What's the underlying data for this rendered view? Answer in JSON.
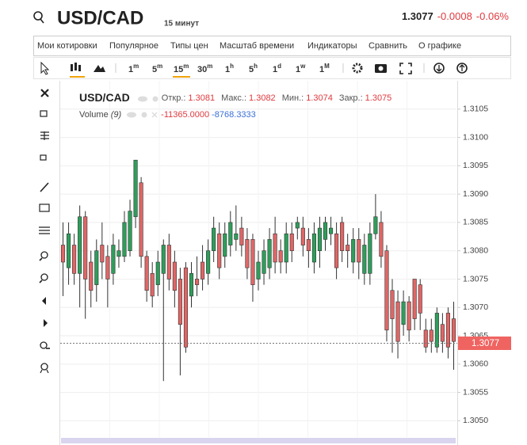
{
  "header": {
    "symbol": "USD/CAD",
    "interval": "15 минут",
    "price": "1.3077",
    "change": "-0.0008",
    "change_pct": "-0.06%"
  },
  "menu": [
    "Мои котировки",
    "Популярное",
    "Типы цен",
    "Масштаб времени",
    "Индикаторы",
    "Сравнить",
    "О графике"
  ],
  "timeframes": [
    {
      "num": "1",
      "unit": "m"
    },
    {
      "num": "5",
      "unit": "m"
    },
    {
      "num": "15",
      "unit": "m"
    },
    {
      "num": "30",
      "unit": "m"
    },
    {
      "num": "1",
      "unit": "h"
    },
    {
      "num": "5",
      "unit": "h"
    },
    {
      "num": "1",
      "unit": "d"
    },
    {
      "num": "1",
      "unit": "w"
    },
    {
      "num": "1",
      "unit": "M"
    }
  ],
  "legend": {
    "symbol": "USD/CAD",
    "open_label": "Откр.:",
    "open": "1.3081",
    "high_label": "Макс.:",
    "high": "1.3082",
    "low_label": "Мин.:",
    "low": "1.3074",
    "close_label": "Закр.:",
    "close": "1.3075",
    "volume_label": "Volume",
    "volume_param": "(9)",
    "volume_1": "-11365.0000",
    "volume_2": "-8768.3333"
  },
  "price_marker": "1.3077",
  "chart_data": {
    "type": "candlestick",
    "up_color": "#2e9e5b",
    "down_color": "#e06666",
    "grid": true,
    "open": [
      1.3081,
      1.3077,
      1.3081,
      1.3076,
      1.3086,
      1.3078,
      1.3074,
      1.3081,
      1.3079,
      1.3076,
      1.3079,
      1.3079,
      1.308,
      1.3086,
      1.3092,
      1.3079,
      1.3076,
      1.3074,
      1.3076,
      1.3081,
      1.3078,
      1.3075,
      1.3077,
      1.3072,
      1.3075,
      1.3078,
      1.3076,
      1.308,
      1.3083,
      1.3079,
      1.3081,
      1.3082,
      1.3084,
      1.3082,
      1.3082,
      1.3075,
      1.3076,
      1.3077,
      1.3083,
      1.308,
      1.3078,
      1.3083,
      1.3084,
      1.3084,
      1.3082,
      1.3078,
      1.308,
      1.3082,
      1.3083,
      1.3083,
      1.3085,
      1.3081,
      1.3078,
      1.3082,
      1.3076,
      1.3076,
      1.3083,
      1.3085,
      1.308,
      1.3073,
      1.3071,
      1.3067,
      1.3071,
      1.3075,
      1.3074,
      1.3066,
      1.3066,
      1.3063,
      1.3067,
      1.3069,
      1.3068
    ],
    "high": [
      1.3085,
      1.3085,
      1.3083,
      1.3088,
      1.3087,
      1.308,
      1.3082,
      1.3085,
      1.3081,
      1.3083,
      1.3082,
      1.3087,
      1.3089,
      1.3096,
      1.3093,
      1.308,
      1.3078,
      1.308,
      1.3082,
      1.3083,
      1.308,
      1.3077,
      1.3078,
      1.3078,
      1.3079,
      1.3081,
      1.3082,
      1.3086,
      1.3085,
      1.3085,
      1.3087,
      1.3088,
      1.3086,
      1.3084,
      1.3083,
      1.308,
      1.3082,
      1.3084,
      1.3086,
      1.3082,
      1.3085,
      1.3085,
      1.3086,
      1.3086,
      1.3084,
      1.3085,
      1.3086,
      1.3086,
      1.3086,
      1.3085,
      1.3086,
      1.3083,
      1.3084,
      1.3084,
      1.3083,
      1.3085,
      1.309,
      1.3087,
      1.3081,
      1.3075,
      1.3073,
      1.3073,
      1.3072,
      1.3075,
      1.3075,
      1.3068,
      1.3068,
      1.307,
      1.3069,
      1.307,
      1.3071
    ],
    "low": [
      1.3072,
      1.3074,
      1.3074,
      1.307,
      1.3068,
      1.307,
      1.3071,
      1.3075,
      1.307,
      1.3074,
      1.3077,
      1.3078,
      1.3079,
      1.3084,
      1.3077,
      1.3071,
      1.307,
      1.3072,
      1.3057,
      1.3073,
      1.307,
      1.3058,
      1.3062,
      1.307,
      1.3072,
      1.3073,
      1.3074,
      1.3078,
      1.3075,
      1.3077,
      1.3079,
      1.308,
      1.3079,
      1.3075,
      1.3071,
      1.3073,
      1.3074,
      1.3075,
      1.3076,
      1.3076,
      1.3076,
      1.3078,
      1.3082,
      1.3079,
      1.3077,
      1.3076,
      1.3077,
      1.308,
      1.3081,
      1.3075,
      1.3078,
      1.3077,
      1.3076,
      1.3075,
      1.3074,
      1.3074,
      1.3082,
      1.3077,
      1.3064,
      1.3062,
      1.3061,
      1.3065,
      1.3064,
      1.3066,
      1.3066,
      1.3062,
      1.3062,
      1.3062,
      1.3062,
      1.3061,
      1.3059
    ],
    "close": [
      1.3078,
      1.3083,
      1.3076,
      1.3086,
      1.3075,
      1.3073,
      1.308,
      1.3078,
      1.3075,
      1.3081,
      1.308,
      1.3085,
      1.3087,
      1.3096,
      1.3079,
      1.3073,
      1.3072,
      1.3078,
      1.3081,
      1.3075,
      1.3073,
      1.3067,
      1.3063,
      1.3076,
      1.3074,
      1.3075,
      1.308,
      1.3084,
      1.3077,
      1.3083,
      1.3085,
      1.3083,
      1.3081,
      1.3077,
      1.3074,
      1.3078,
      1.308,
      1.3082,
      1.3078,
      1.3078,
      1.3083,
      1.308,
      1.3085,
      1.3081,
      1.308,
      1.3083,
      1.3084,
      1.3085,
      1.3084,
      1.3077,
      1.308,
      1.308,
      1.3082,
      1.3078,
      1.3081,
      1.3083,
      1.3086,
      1.3079,
      1.3066,
      1.3068,
      1.3064,
      1.3071,
      1.3066,
      1.3068,
      1.3069,
      1.3063,
      1.3064,
      1.3069,
      1.3064,
      1.3063,
      1.3064
    ],
    "ylim": [
      1.3046,
      1.311
    ],
    "yticks": [
      {
        "value": 1.305,
        "label": "1.3050"
      },
      1.3055,
      {
        "value": 1.306,
        "label": "1.3060"
      },
      1.3065,
      {
        "value": 1.307,
        "label": "1.3070"
      },
      1.3075,
      {
        "value": 1.308,
        "label": "1.3080"
      },
      1.3085,
      {
        "value": 1.309,
        "label": "1.3090"
      },
      1.3095,
      {
        "value": 1.31,
        "label": "1.3100"
      },
      1.3105
    ]
  }
}
